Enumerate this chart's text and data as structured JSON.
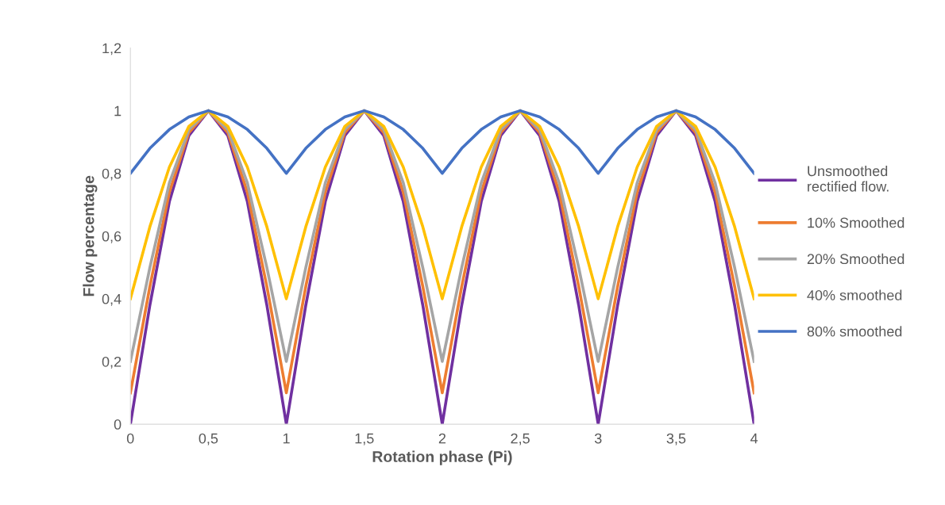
{
  "chart_data": {
    "type": "line",
    "xlabel": "Rotation phase (Pi)",
    "ylabel": "Flow percentage",
    "x": [
      0,
      0.125,
      0.25,
      0.375,
      0.5,
      0.625,
      0.75,
      0.875,
      1,
      1.125,
      1.25,
      1.375,
      1.5,
      1.625,
      1.75,
      1.875,
      2,
      2.125,
      2.25,
      2.375,
      2.5,
      2.625,
      2.75,
      2.875,
      3,
      3.125,
      3.25,
      3.375,
      3.5,
      3.625,
      3.75,
      3.875,
      4
    ],
    "series": [
      {
        "name": "Unsmoothed\nrectified flow.",
        "color": "#7030a0",
        "values": [
          0,
          0.38,
          0.71,
          0.92,
          1,
          0.92,
          0.71,
          0.38,
          0,
          0.38,
          0.71,
          0.92,
          1,
          0.92,
          0.71,
          0.38,
          0,
          0.38,
          0.71,
          0.92,
          1,
          0.92,
          0.71,
          0.38,
          0,
          0.38,
          0.71,
          0.92,
          1,
          0.92,
          0.71,
          0.38,
          0
        ]
      },
      {
        "name": "10% Smoothed",
        "color": "#ed7d31",
        "values": [
          0.1,
          0.44,
          0.74,
          0.93,
          1,
          0.93,
          0.74,
          0.44,
          0.1,
          0.44,
          0.74,
          0.93,
          1,
          0.93,
          0.74,
          0.44,
          0.1,
          0.44,
          0.74,
          0.93,
          1,
          0.93,
          0.74,
          0.44,
          0.1,
          0.44,
          0.74,
          0.93,
          1,
          0.93,
          0.74,
          0.44,
          0.1
        ]
      },
      {
        "name": "20% Smoothed",
        "color": "#a5a5a5",
        "values": [
          0.2,
          0.5,
          0.77,
          0.94,
          1,
          0.94,
          0.77,
          0.5,
          0.2,
          0.5,
          0.77,
          0.94,
          1,
          0.94,
          0.77,
          0.5,
          0.2,
          0.5,
          0.77,
          0.94,
          1,
          0.94,
          0.77,
          0.5,
          0.2,
          0.5,
          0.77,
          0.94,
          1,
          0.94,
          0.77,
          0.5,
          0.2
        ]
      },
      {
        "name": "40% smoothed",
        "color": "#ffc000",
        "values": [
          0.4,
          0.63,
          0.82,
          0.95,
          1,
          0.95,
          0.82,
          0.63,
          0.4,
          0.63,
          0.82,
          0.95,
          1,
          0.95,
          0.82,
          0.63,
          0.4,
          0.63,
          0.82,
          0.95,
          1,
          0.95,
          0.82,
          0.63,
          0.4,
          0.63,
          0.82,
          0.95,
          1,
          0.95,
          0.82,
          0.63,
          0.4
        ]
      },
      {
        "name": "80% smoothed",
        "color": "#4472c4",
        "values": [
          0.8,
          0.88,
          0.94,
          0.98,
          1,
          0.98,
          0.94,
          0.88,
          0.8,
          0.88,
          0.94,
          0.98,
          1,
          0.98,
          0.94,
          0.88,
          0.8,
          0.88,
          0.94,
          0.98,
          1,
          0.98,
          0.94,
          0.88,
          0.8,
          0.88,
          0.94,
          0.98,
          1,
          0.98,
          0.94,
          0.88,
          0.8
        ]
      }
    ],
    "xlim": [
      0,
      4
    ],
    "xticks": [
      0,
      {
        "value": 0.5,
        "label": "0,5"
      },
      1,
      {
        "value": 1.5,
        "label": "1,5"
      },
      2,
      {
        "value": 2.5,
        "label": "2,5"
      },
      3,
      {
        "value": 3.5,
        "label": "3,5"
      },
      4
    ],
    "ylim": [
      0,
      1.2
    ],
    "yticks": [
      0,
      {
        "value": 0.2,
        "label": "0,2"
      },
      {
        "value": 0.4,
        "label": "0,4"
      },
      {
        "value": 0.6,
        "label": "0,6"
      },
      {
        "value": 0.8,
        "label": "0,8"
      },
      1,
      {
        "value": 1.2,
        "label": "1,2"
      }
    ],
    "grid": false,
    "legend": "right",
    "marker": "none",
    "line_style": "solid"
  }
}
